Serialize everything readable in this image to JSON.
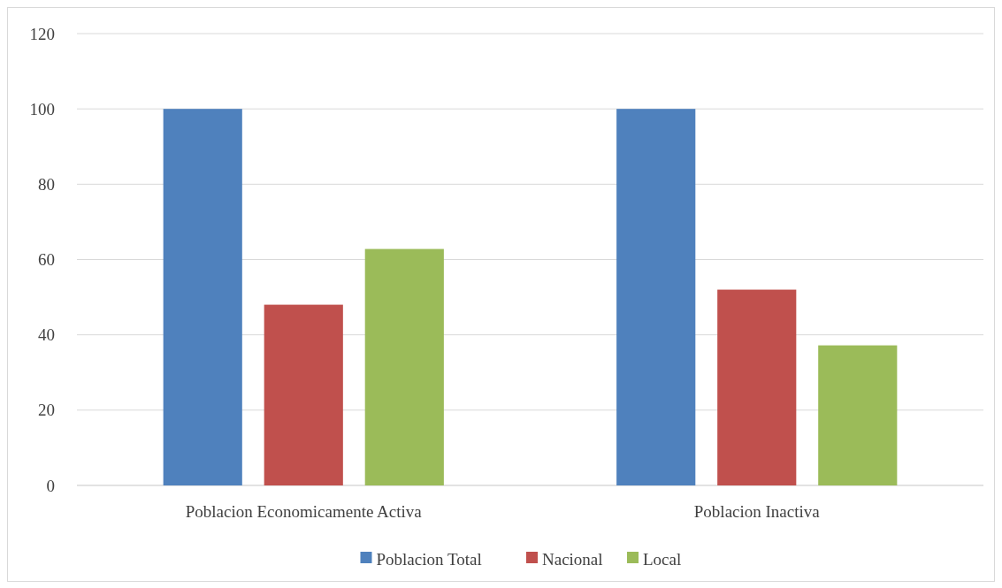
{
  "chart_data": {
    "type": "bar",
    "categories": [
      "Poblacion Economicamente Activa",
      "Poblacion Inactiva"
    ],
    "series": [
      {
        "name": "Poblacion Total",
        "color": "#4f81bd",
        "values": [
          100,
          100
        ]
      },
      {
        "name": "Nacional",
        "color": "#c0504d",
        "values": [
          48,
          52
        ]
      },
      {
        "name": "Local",
        "color": "#9bbb59",
        "values": [
          62.8,
          37.2
        ]
      }
    ],
    "ylim": [
      0,
      120
    ],
    "yticks": [
      0,
      20,
      40,
      60,
      80,
      100,
      120
    ],
    "grid": "y",
    "legend": "bottom"
  }
}
